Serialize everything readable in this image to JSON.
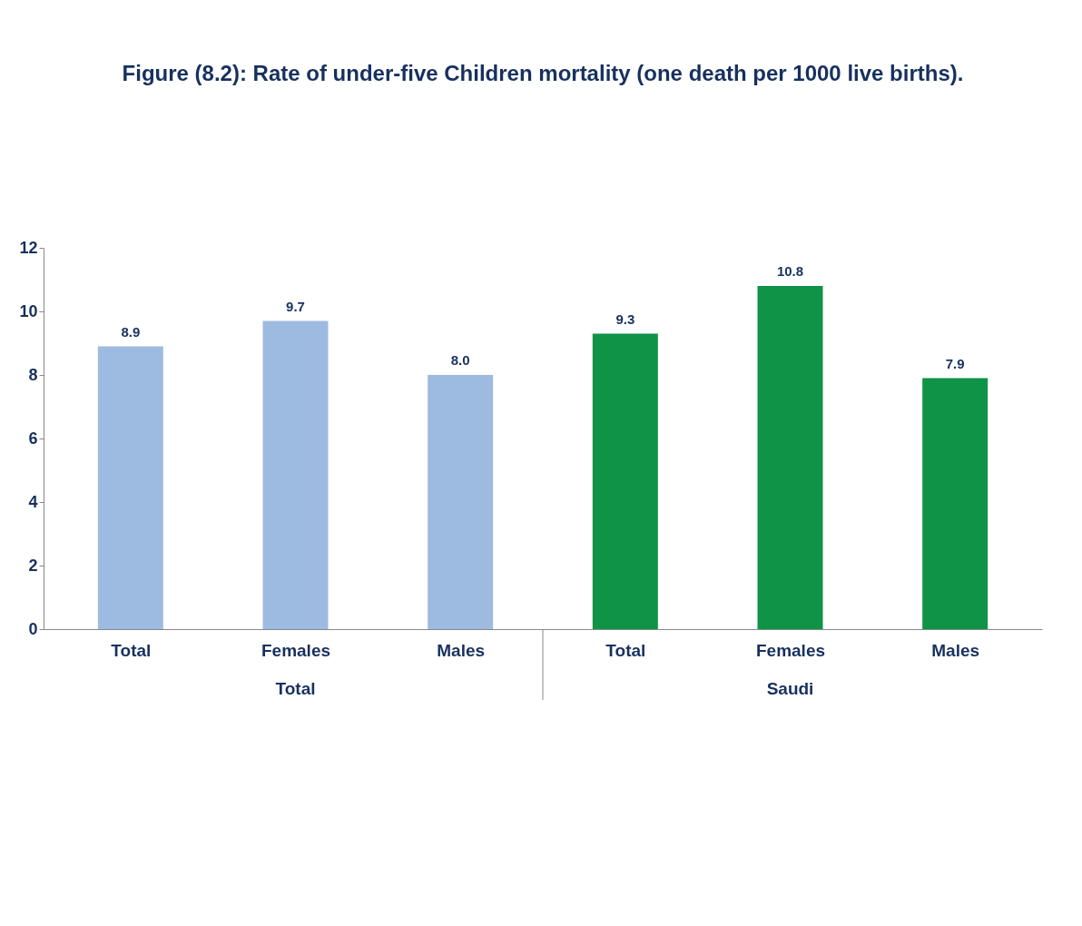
{
  "chart_data": {
    "type": "bar",
    "title": "Figure (8.2): Rate of under-five Children mortality (one death per 1000 live births).",
    "categories": [
      "Total",
      "Females",
      "Males",
      "Total",
      "Females",
      "Males"
    ],
    "values": [
      8.9,
      9.7,
      8.0,
      9.3,
      10.8,
      7.9
    ],
    "value_labels": [
      "8.9",
      "9.7",
      "8.0",
      "9.3",
      "10.8",
      "7.9"
    ],
    "colors": [
      "#9dbbe0",
      "#9dbbe0",
      "#9dbbe0",
      "#0f9347",
      "#0f9347",
      "#0f9347"
    ],
    "annotations": [
      "Total",
      "Saudi"
    ],
    "ylim": [
      0,
      12
    ],
    "yticks": [
      0,
      2,
      4,
      6,
      8,
      10,
      12
    ],
    "grid": false
  }
}
